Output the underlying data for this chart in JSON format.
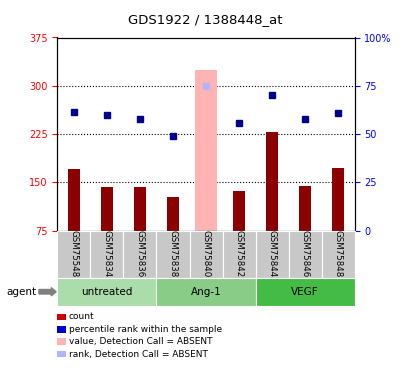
{
  "title": "GDS1922 / 1388448_at",
  "categories": [
    "GSM75548",
    "GSM75834",
    "GSM75836",
    "GSM75838",
    "GSM75840",
    "GSM75842",
    "GSM75844",
    "GSM75846",
    "GSM75848"
  ],
  "bar_values": [
    170,
    143,
    142,
    128,
    null,
    137,
    228,
    145,
    172
  ],
  "absent_bar_value": 325,
  "absent_bar_index": 4,
  "dot_values": [
    260,
    255,
    248,
    222,
    299,
    242,
    285,
    248,
    258
  ],
  "absent_dot_index": 4,
  "absent_dot_value": 299,
  "ylim_left": [
    75,
    375
  ],
  "ylim_right": [
    0,
    100
  ],
  "yticks_left": [
    75,
    150,
    225,
    300,
    375
  ],
  "ytick_labels_left": [
    "75",
    "150",
    "225",
    "300",
    "375"
  ],
  "yticks_right": [
    0,
    25,
    50,
    75,
    100
  ],
  "ytick_labels_right": [
    "0",
    "25",
    "50",
    "75",
    "100%"
  ],
  "bar_color": "#8b0000",
  "absent_bar_color": "#ffb3b3",
  "dot_color": "#00008b",
  "absent_dot_color": "#b3b3ff",
  "group_color_light": "#90ee90",
  "group_color_mid": "#66cc66",
  "group_color_dark": "#33bb33",
  "tick_bg_color": "#c8c8c8",
  "groups": [
    {
      "label": "untreated",
      "start": 0,
      "end": 2
    },
    {
      "label": "Ang-1",
      "start": 3,
      "end": 5
    },
    {
      "label": "VEGF",
      "start": 6,
      "end": 8
    }
  ],
  "legend_items": [
    {
      "label": "count",
      "color": "#cc0000"
    },
    {
      "label": "percentile rank within the sample",
      "color": "#0000cc"
    },
    {
      "label": "value, Detection Call = ABSENT",
      "color": "#ffb3b3"
    },
    {
      "label": "rank, Detection Call = ABSENT",
      "color": "#b3b3ff"
    }
  ],
  "agent_label": "agent",
  "grid_yticks": [
    150,
    225,
    300
  ]
}
